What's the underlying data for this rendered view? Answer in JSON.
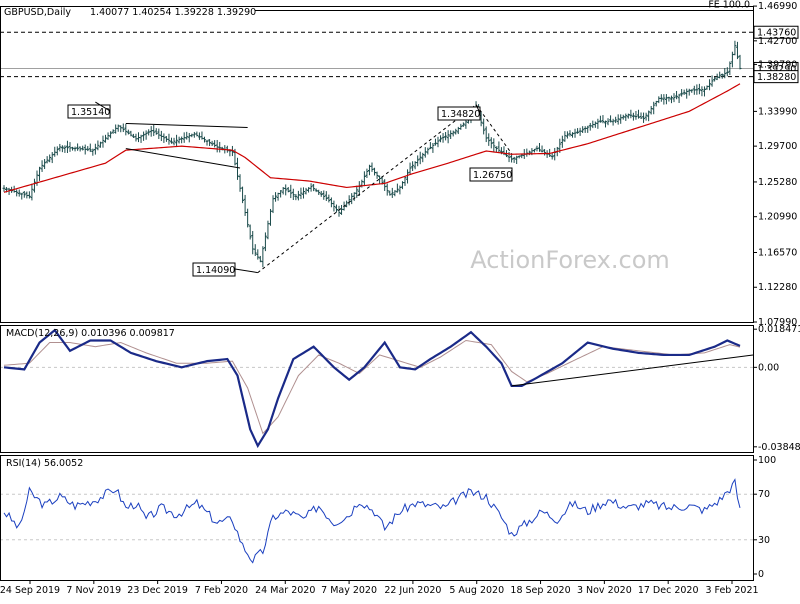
{
  "header": {
    "symbol": "GBPUSD,Daily",
    "ohlc": "1.40077 1.40254 1.39228 1.39290"
  },
  "watermark": "ActionForex.com",
  "colors": {
    "bars": "#1a4a4a",
    "ma": "#cc0000",
    "macd": "#1a2a88",
    "signal": "#b09090",
    "grid": "#c8c8c8",
    "rsi": "#1a3fbf"
  },
  "chart_data": [
    {
      "type": "candlestick",
      "panel": "price",
      "title": "GBPUSD,Daily",
      "ylim": [
        1.0799,
        1.47
      ],
      "y_ticks": [
        "1.46990",
        "1.42700",
        "1.39790",
        "1.33990",
        "1.29700",
        "1.25280",
        "1.20990",
        "1.16570",
        "1.12280",
        "1.07990"
      ],
      "y_tick_values": [
        1.4699,
        1.427,
        1.3979,
        1.3399,
        1.297,
        1.2528,
        1.2099,
        1.1657,
        1.1228,
        1.0799
      ],
      "x_labels": [
        "24 Sep 2019",
        "7 Nov 2019",
        "23 Dec 2019",
        "7 Feb 2020",
        "24 Mar 2020",
        "7 May 2020",
        "22 Jun 2020",
        "5 Aug 2020",
        "18 Sep 2020",
        "3 Nov 2020",
        "17 Dec 2020",
        "3 Feb 2021"
      ],
      "levels": [
        {
          "label": "FE 100.0",
          "value": 1.4645,
          "style": "solid"
        },
        {
          "label": "1.43760",
          "value": 1.4376,
          "style": "dashed"
        },
        {
          "label": "1.39290",
          "value": 1.3929,
          "style": "current"
        },
        {
          "label": "1.38280",
          "value": 1.3828,
          "style": "dashed"
        }
      ],
      "annotations": [
        {
          "label": "1.35140",
          "value": 1.3514
        },
        {
          "label": "1.14090",
          "value": 1.1409
        },
        {
          "label": "1.34820",
          "value": 1.3482
        },
        {
          "label": "1.26750",
          "value": 1.2675
        }
      ],
      "close_anchors": [
        [
          0,
          1.245
        ],
        [
          10,
          1.235
        ],
        [
          14,
          1.27
        ],
        [
          22,
          1.296
        ],
        [
          35,
          1.292
        ],
        [
          45,
          1.322
        ],
        [
          52,
          1.306
        ],
        [
          58,
          1.316
        ],
        [
          66,
          1.302
        ],
        [
          75,
          1.312
        ],
        [
          84,
          1.296
        ],
        [
          90,
          1.29
        ],
        [
          93,
          1.245
        ],
        [
          98,
          1.17
        ],
        [
          101,
          1.155
        ],
        [
          106,
          1.232
        ],
        [
          110,
          1.245
        ],
        [
          115,
          1.235
        ],
        [
          121,
          1.247
        ],
        [
          128,
          1.23
        ],
        [
          132,
          1.215
        ],
        [
          140,
          1.247
        ],
        [
          144,
          1.272
        ],
        [
          148,
          1.257
        ],
        [
          152,
          1.237
        ],
        [
          156,
          1.246
        ],
        [
          160,
          1.27
        ],
        [
          166,
          1.29
        ],
        [
          172,
          1.306
        ],
        [
          178,
          1.316
        ],
        [
          182,
          1.327
        ],
        [
          186,
          1.346
        ],
        [
          190,
          1.307
        ],
        [
          194,
          1.294
        ],
        [
          200,
          1.281
        ],
        [
          205,
          1.287
        ],
        [
          210,
          1.294
        ],
        [
          216,
          1.284
        ],
        [
          221,
          1.31
        ],
        [
          226,
          1.314
        ],
        [
          234,
          1.327
        ],
        [
          240,
          1.328
        ],
        [
          246,
          1.336
        ],
        [
          252,
          1.331
        ],
        [
          258,
          1.356
        ],
        [
          264,
          1.357
        ],
        [
          270,
          1.366
        ],
        [
          276,
          1.367
        ],
        [
          280,
          1.381
        ],
        [
          285,
          1.388
        ],
        [
          288,
          1.421
        ],
        [
          290,
          1.3929
        ]
      ],
      "ma_anchors": [
        [
          0,
          1.24
        ],
        [
          20,
          1.258
        ],
        [
          40,
          1.276
        ],
        [
          48,
          1.292
        ],
        [
          70,
          1.297
        ],
        [
          90,
          1.292
        ],
        [
          95,
          1.283
        ],
        [
          105,
          1.258
        ],
        [
          120,
          1.254
        ],
        [
          135,
          1.246
        ],
        [
          150,
          1.251
        ],
        [
          160,
          1.262
        ],
        [
          175,
          1.276
        ],
        [
          190,
          1.291
        ],
        [
          200,
          1.287
        ],
        [
          215,
          1.288
        ],
        [
          230,
          1.3
        ],
        [
          250,
          1.32
        ],
        [
          270,
          1.34
        ],
        [
          285,
          1.365
        ],
        [
          290,
          1.374
        ]
      ],
      "bar_count": 291
    },
    {
      "type": "line",
      "panel": "macd",
      "title": "MACD(12,26,9) 0.010396 0.009817",
      "ylim": [
        -0.041,
        0.0205
      ],
      "y_ticks": [
        "0.018471",
        "0.00",
        "-0.038486"
      ],
      "y_tick_values": [
        0.018471,
        0.0,
        -0.038486
      ],
      "series": [
        {
          "name": "MACD",
          "anchors": [
            [
              0,
              0.0
            ],
            [
              8,
              -0.001
            ],
            [
              14,
              0.012
            ],
            [
              20,
              0.018
            ],
            [
              26,
              0.008
            ],
            [
              34,
              0.013
            ],
            [
              42,
              0.013
            ],
            [
              50,
              0.007
            ],
            [
              60,
              0.003
            ],
            [
              70,
              0.0
            ],
            [
              80,
              0.003
            ],
            [
              88,
              0.004
            ],
            [
              92,
              -0.004
            ],
            [
              97,
              -0.03
            ],
            [
              100,
              -0.038
            ],
            [
              104,
              -0.03
            ],
            [
              108,
              -0.015
            ],
            [
              114,
              0.004
            ],
            [
              122,
              0.01
            ],
            [
              130,
              0.0
            ],
            [
              136,
              -0.006
            ],
            [
              142,
              0.0
            ],
            [
              150,
              0.012
            ],
            [
              156,
              0.0
            ],
            [
              162,
              -0.001
            ],
            [
              168,
              0.004
            ],
            [
              176,
              0.01
            ],
            [
              184,
              0.017
            ],
            [
              190,
              0.01
            ],
            [
              196,
              0.002
            ],
            [
              200,
              -0.009
            ],
            [
              204,
              -0.009
            ],
            [
              210,
              -0.005
            ],
            [
              220,
              0.002
            ],
            [
              230,
              0.012
            ],
            [
              240,
              0.009
            ],
            [
              250,
              0.007
            ],
            [
              260,
              0.006
            ],
            [
              270,
              0.006
            ],
            [
              280,
              0.01
            ],
            [
              285,
              0.013
            ],
            [
              290,
              0.0104
            ]
          ]
        },
        {
          "name": "Signal",
          "anchors": [
            [
              0,
              0.001
            ],
            [
              10,
              0.002
            ],
            [
              18,
              0.012
            ],
            [
              26,
              0.012
            ],
            [
              36,
              0.01
            ],
            [
              46,
              0.012
            ],
            [
              56,
              0.007
            ],
            [
              68,
              0.002
            ],
            [
              80,
              0.002
            ],
            [
              90,
              0.003
            ],
            [
              96,
              -0.01
            ],
            [
              102,
              -0.032
            ],
            [
              108,
              -0.024
            ],
            [
              116,
              -0.004
            ],
            [
              124,
              0.006
            ],
            [
              132,
              0.002
            ],
            [
              140,
              -0.003
            ],
            [
              148,
              0.006
            ],
            [
              156,
              0.003
            ],
            [
              164,
              0.0
            ],
            [
              172,
              0.005
            ],
            [
              182,
              0.013
            ],
            [
              192,
              0.011
            ],
            [
              200,
              -0.002
            ],
            [
              206,
              -0.007
            ],
            [
              214,
              -0.003
            ],
            [
              224,
              0.003
            ],
            [
              236,
              0.01
            ],
            [
              250,
              0.008
            ],
            [
              264,
              0.006
            ],
            [
              276,
              0.007
            ],
            [
              286,
              0.011
            ],
            [
              290,
              0.0098
            ]
          ]
        }
      ],
      "trendline": [
        [
          200,
          -0.009
        ],
        [
          290,
          0.006
        ]
      ]
    },
    {
      "type": "line",
      "panel": "rsi",
      "title": "RSI(14) 56.0052",
      "ylim": [
        0,
        100
      ],
      "y_ticks": [
        "100",
        "70",
        "30",
        "0"
      ],
      "y_tick_values": [
        100,
        70,
        30,
        0
      ],
      "levels": [
        70,
        30
      ],
      "series": [
        {
          "name": "RSI(14)",
          "anchors": [
            [
              0,
              55
            ],
            [
              6,
              40
            ],
            [
              10,
              72
            ],
            [
              16,
              60
            ],
            [
              22,
              68
            ],
            [
              28,
              60
            ],
            [
              36,
              65
            ],
            [
              44,
              75
            ],
            [
              48,
              58
            ],
            [
              52,
              62
            ],
            [
              56,
              48
            ],
            [
              62,
              58
            ],
            [
              68,
              52
            ],
            [
              76,
              62
            ],
            [
              84,
              45
            ],
            [
              90,
              48
            ],
            [
              94,
              25
            ],
            [
              98,
              12
            ],
            [
              102,
              20
            ],
            [
              106,
              50
            ],
            [
              112,
              55
            ],
            [
              118,
              48
            ],
            [
              124,
              60
            ],
            [
              130,
              45
            ],
            [
              136,
              52
            ],
            [
              140,
              65
            ],
            [
              146,
              55
            ],
            [
              150,
              40
            ],
            [
              156,
              55
            ],
            [
              162,
              62
            ],
            [
              168,
              60
            ],
            [
              174,
              58
            ],
            [
              178,
              65
            ],
            [
              184,
              72
            ],
            [
              190,
              68
            ],
            [
              196,
              50
            ],
            [
              200,
              35
            ],
            [
              206,
              45
            ],
            [
              212,
              55
            ],
            [
              218,
              48
            ],
            [
              224,
              62
            ],
            [
              230,
              55
            ],
            [
              238,
              65
            ],
            [
              246,
              58
            ],
            [
              254,
              62
            ],
            [
              262,
              58
            ],
            [
              270,
              60
            ],
            [
              276,
              56
            ],
            [
              282,
              65
            ],
            [
              286,
              75
            ],
            [
              288,
              80
            ],
            [
              290,
              56
            ]
          ]
        }
      ]
    }
  ]
}
